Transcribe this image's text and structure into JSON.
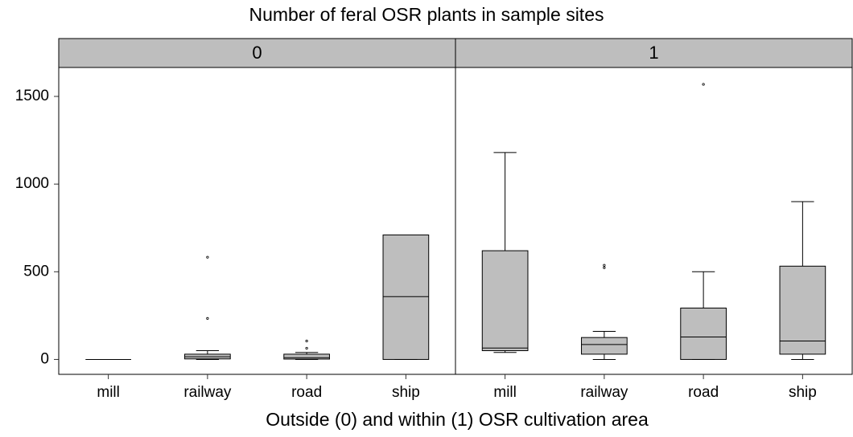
{
  "chart_data": {
    "type": "box",
    "title": "Number of feral OSR plants in sample sites",
    "x_label": "Outside (0) and within (1) OSR cultivation area",
    "ylim": [
      -85,
      1665
    ],
    "yticks": [
      0,
      500,
      1000,
      1500
    ],
    "color": "#bebebe",
    "strip_color": "#bebebe",
    "grid": false,
    "facets": [
      {
        "name": "0",
        "categories": [
          "mill",
          "railway",
          "road",
          "ship"
        ],
        "boxes": [
          {
            "min": 0,
            "q1": 0,
            "median": 0,
            "q3": 0,
            "max": 0,
            "outliers": []
          },
          {
            "min": 0,
            "q1": 3,
            "median": 15,
            "q3": 30,
            "max": 50,
            "outliers": [
              583,
              234
            ]
          },
          {
            "min": 0,
            "q1": 2,
            "median": 10,
            "q3": 30,
            "max": 40,
            "outliers": [
              105,
              64
            ]
          },
          {
            "min": 0,
            "q1": 0,
            "median": 358,
            "q3": 710,
            "max": 710,
            "outliers": []
          }
        ]
      },
      {
        "name": "1",
        "categories": [
          "mill",
          "railway",
          "road",
          "ship"
        ],
        "boxes": [
          {
            "min": 40,
            "q1": 50,
            "median": 65,
            "q3": 620,
            "max": 1180,
            "outliers": []
          },
          {
            "min": 0,
            "q1": 30,
            "median": 85,
            "q3": 125,
            "max": 160,
            "outliers": [
              537,
              523
            ]
          },
          {
            "min": 0,
            "q1": 0,
            "median": 128,
            "q3": 293,
            "max": 500,
            "outliers": [
              1569
            ]
          },
          {
            "min": 0,
            "q1": 30,
            "median": 105,
            "q3": 532,
            "max": 900,
            "outliers": []
          }
        ]
      }
    ]
  }
}
